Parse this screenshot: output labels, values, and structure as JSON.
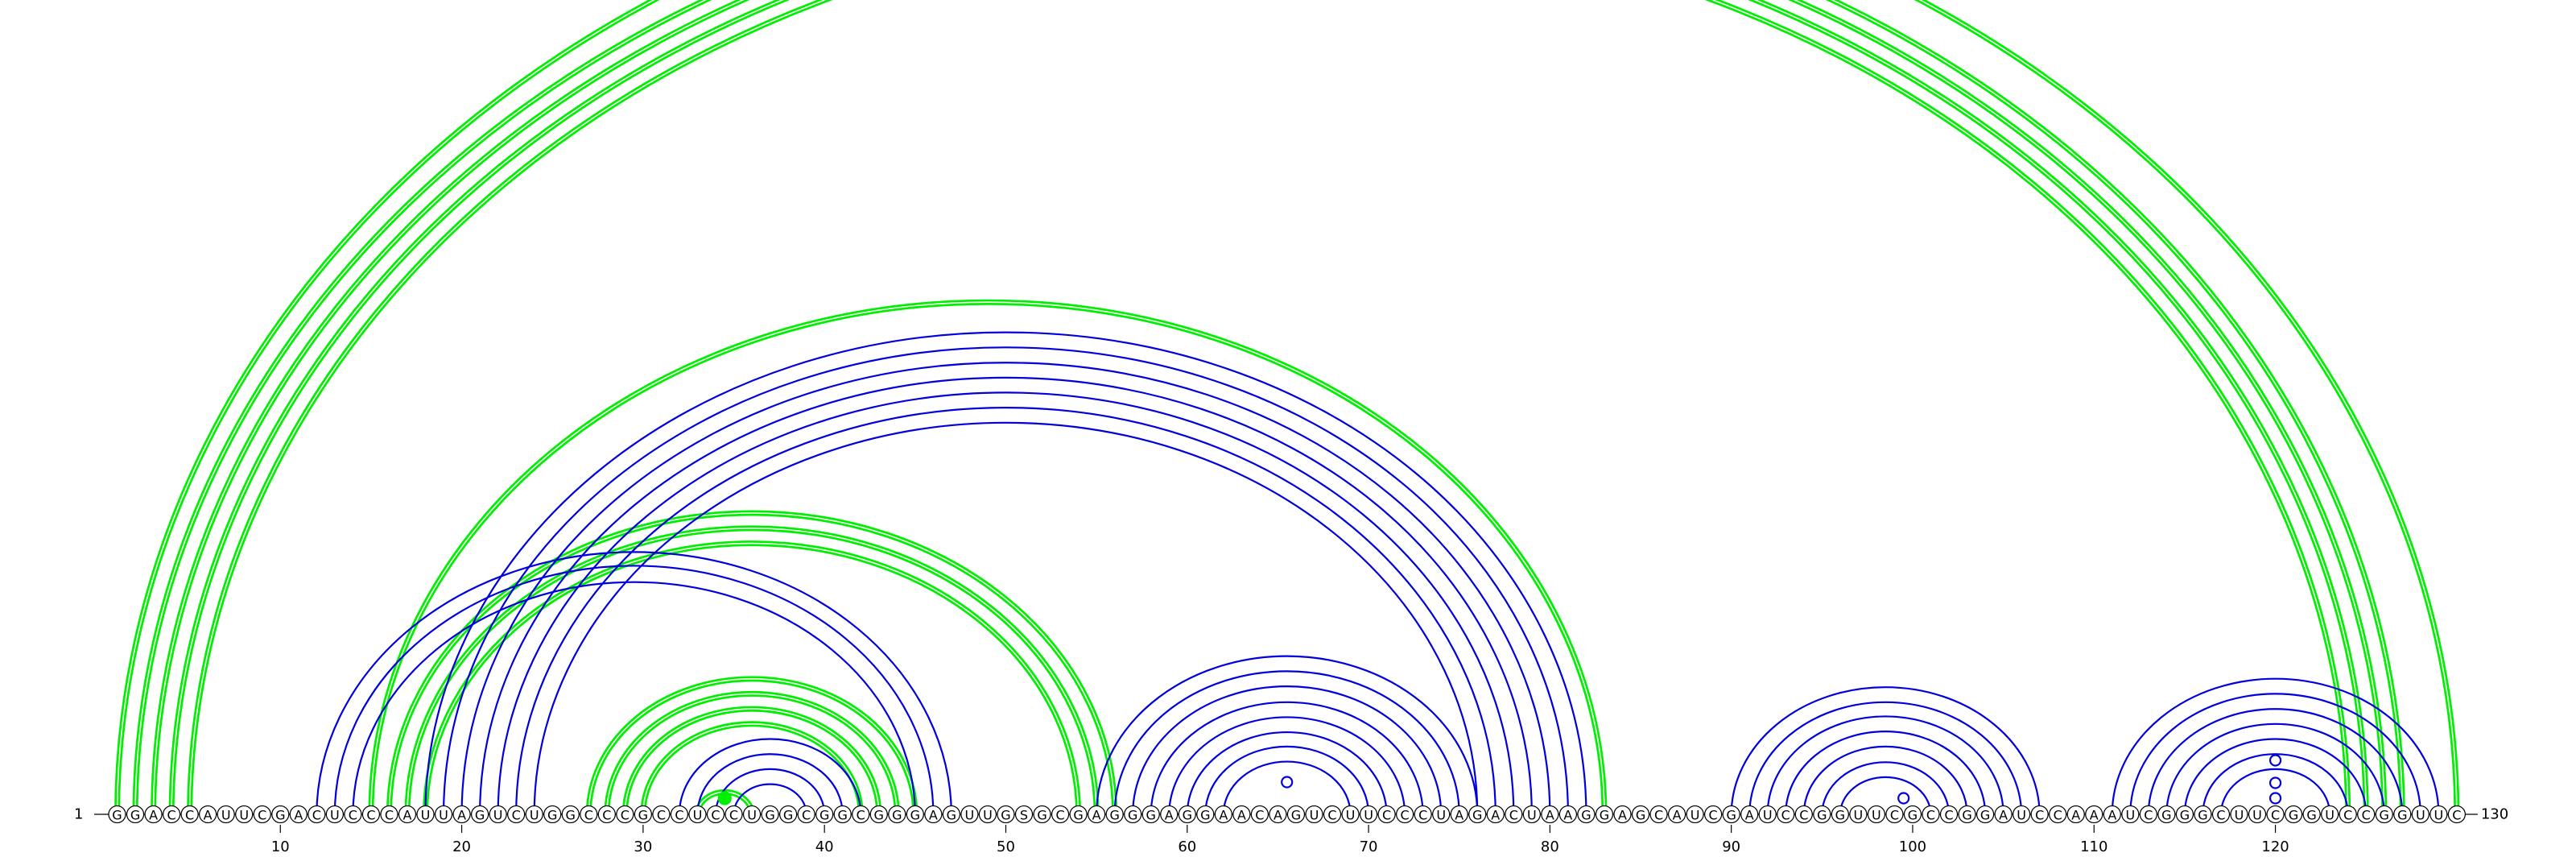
{
  "diagram": {
    "type": "rna-arc-diagram",
    "sequence": "GGACCAUUCGACUCCCAUUAGUCUGGCCCGCCUCCUGGCGGCGGGAGUUGSGCGAGGGAGGAACAGUCUUCCCUAGACUAAGGAGCAUCGAUCCGGUUCGCCGGAUCCAAAUCGGGCUUCGGUCCGGUUC",
    "start_label": "1",
    "end_label": "130",
    "tick_labels": [
      "10",
      "20",
      "30",
      "40",
      "50",
      "60",
      "70",
      "80",
      "90",
      "100",
      "110",
      "120"
    ],
    "colors": {
      "green": "#00ee00",
      "blue": "#0000dd"
    },
    "stems": [
      {
        "color": "green",
        "i": 1,
        "j": 130,
        "len": 1,
        "style": "double"
      },
      {
        "color": "green",
        "i": 2,
        "j": 127,
        "len": 4,
        "style": "double"
      },
      {
        "color": "green",
        "i": 15,
        "j": 83,
        "len": 1,
        "style": "double"
      },
      {
        "color": "green",
        "i": 16,
        "j": 56,
        "len": 3,
        "style": "double"
      },
      {
        "color": "green",
        "i": 27,
        "j": 45,
        "len": 4,
        "style": "double"
      },
      {
        "color": "green",
        "i": 33,
        "j": 36,
        "len": 1,
        "style": "double"
      },
      {
        "color": "blue",
        "i": 12,
        "j": 47,
        "len": 3,
        "style": "single"
      },
      {
        "color": "blue",
        "i": 18,
        "j": 82,
        "len": 7,
        "style": "single"
      },
      {
        "color": "blue",
        "i": 32,
        "j": 42,
        "len": 4,
        "style": "single"
      },
      {
        "color": "blue",
        "i": 55,
        "j": 76,
        "len": 8,
        "style": "single"
      },
      {
        "color": "blue",
        "i": 90,
        "j": 107,
        "len": 7,
        "style": "single"
      },
      {
        "color": "blue",
        "i": 111,
        "j": 129,
        "len": 7,
        "style": "single"
      }
    ],
    "markers": [
      {
        "pos": 34.5,
        "level": 10,
        "color": "green",
        "filled": true
      },
      {
        "pos": 65.5,
        "level": 30,
        "color": "blue",
        "filled": false
      },
      {
        "pos": 99.5,
        "level": 10,
        "color": "blue",
        "filled": false
      },
      {
        "pos": 120,
        "level": 10,
        "color": "blue",
        "filled": false
      },
      {
        "pos": 120,
        "level": 29,
        "color": "blue",
        "filled": false
      },
      {
        "pos": 120,
        "level": 57,
        "color": "blue",
        "filled": false
      }
    ]
  }
}
